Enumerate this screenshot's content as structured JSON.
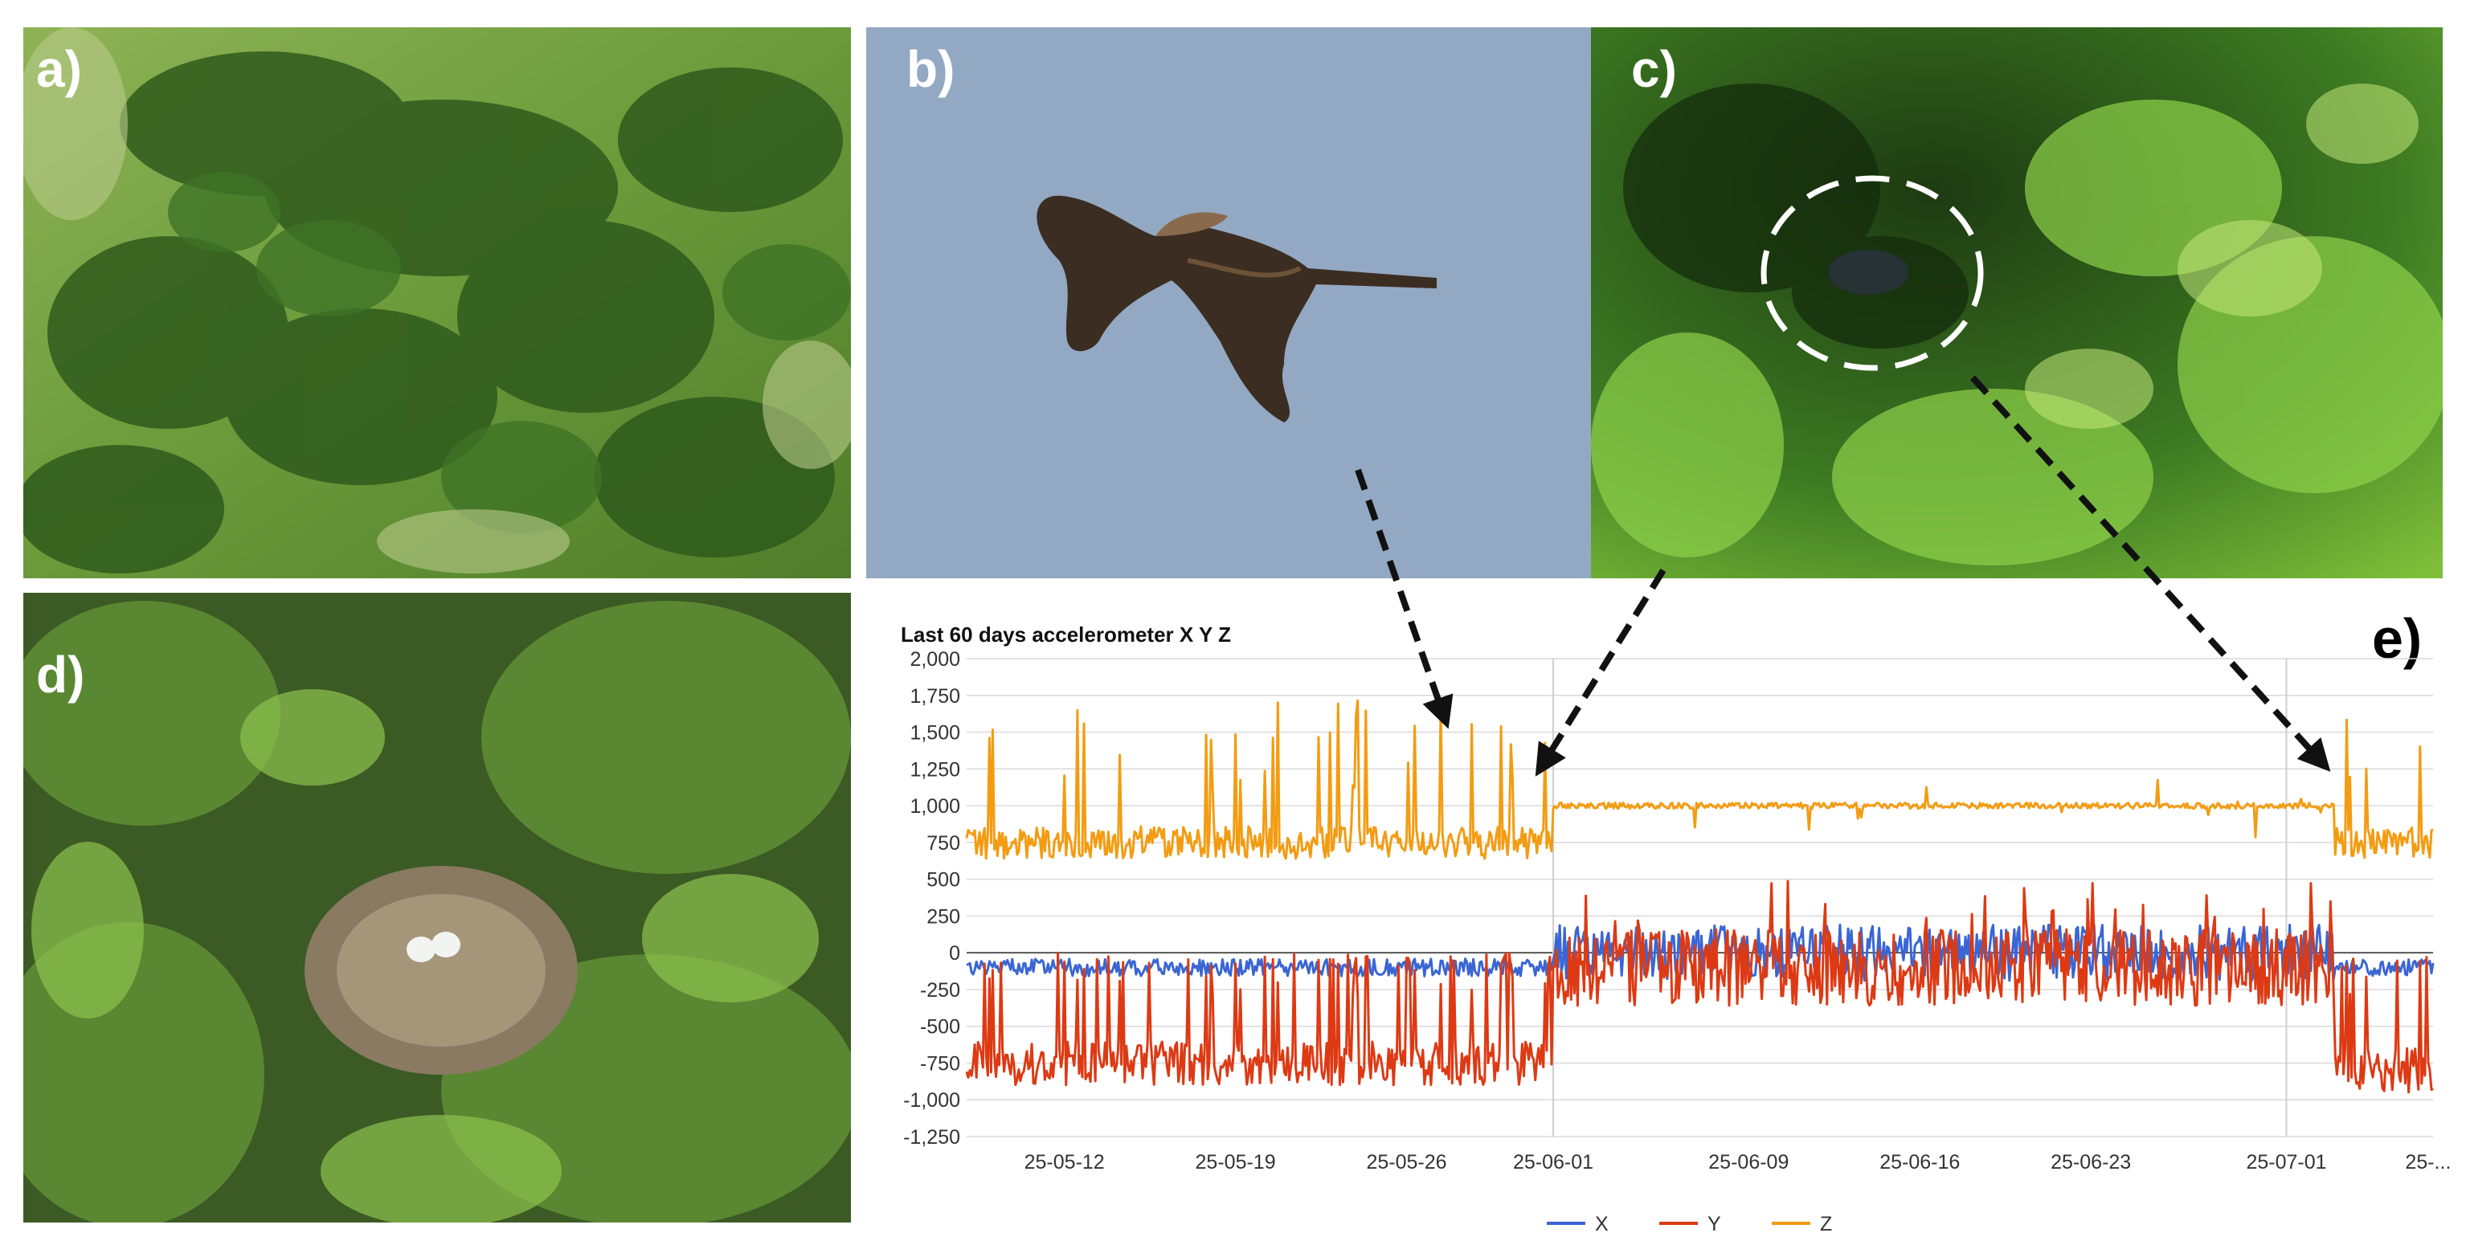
{
  "panels": {
    "a": {
      "label": "a)",
      "subject": "aerial view of shrub-covered hillside meadow"
    },
    "b": {
      "label": "b)",
      "subject": "raptor in flight against blue sky"
    },
    "c": {
      "label": "c)",
      "subject": "nest hidden in dense shrub, dashed circle highlight"
    },
    "d": {
      "label": "d)",
      "subject": "ground nest with two pale eggs among grass and leaves"
    },
    "e": {
      "label": "e)"
    }
  },
  "colors": {
    "x_series": "#3a66d4",
    "y_series": "#dd3a14",
    "z_series": "#f39c12",
    "arrow": "#111111"
  },
  "chart_data": {
    "type": "line",
    "title": "Last 60 days accelerometer X Y Z",
    "xlabel": "",
    "ylabel": "",
    "ylim": [
      -1250,
      2000
    ],
    "yticks": [
      -1250,
      -1000,
      -750,
      -500,
      -250,
      0,
      250,
      500,
      750,
      1000,
      1250,
      1500,
      1750,
      2000
    ],
    "ytick_labels": [
      "-1,250",
      "-1,000",
      "-750",
      "-500",
      "-250",
      "0",
      "250",
      "500",
      "750",
      "1,000",
      "1,250",
      "1,500",
      "1,750",
      "2,000"
    ],
    "xlim": [
      "25-05-08",
      "25-07-07"
    ],
    "xtick_labels": [
      "25-05-12",
      "25-05-19",
      "25-05-26",
      "25-06-01",
      "25-06-09",
      "25-06-16",
      "25-06-23",
      "25-07-01",
      "25-..."
    ],
    "xtick_days": [
      4,
      11,
      18,
      24,
      32,
      39,
      46,
      54,
      59.8
    ],
    "vertical_markers_days": [
      24,
      54
    ],
    "grid": true,
    "legend": "bottom",
    "series": [
      {
        "name": "X",
        "description": "approx -100 before 25-06-01 and after 25-07-04; -250 to 200 between"
      },
      {
        "name": "Y",
        "description": "approx -750 before 25-06-01 and after 25-07-04; -500 to 300 between"
      },
      {
        "name": "Z",
        "description": "approx 700 with spikes to 1750 before 25-06-01 and after 25-07-04; ~1000 between"
      }
    ],
    "regimes": [
      {
        "from": 0,
        "to": 24,
        "x": -100,
        "y": -750,
        "z": 750
      },
      {
        "from": 24,
        "to": 56,
        "x": 0,
        "y": -100,
        "z": 1000
      },
      {
        "from": 56,
        "to": 60,
        "x": -100,
        "y": -800,
        "z": 750
      }
    ]
  }
}
